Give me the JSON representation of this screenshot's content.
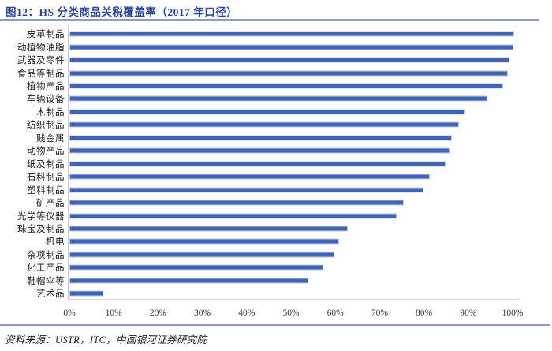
{
  "figure": {
    "title": "图12：HS 分类商品关税覆盖率（2017 年口径）",
    "source": "资料来源：USTR，ITC，中国银河证券研究院"
  },
  "colors": {
    "bar_fill": "#3E64B4",
    "bar_edge": "#BCC9E8",
    "title_text": "#2E4A96",
    "divider_rule": "#8C9CC9",
    "axis_line": "#D9D9D9",
    "tick_text": "#3a3a3a",
    "category_text": "#1c1c1c"
  },
  "chart_data": {
    "type": "bar",
    "orientation": "horizontal",
    "title": "HS 分类商品关税覆盖率（2017 年口径）",
    "categories": [
      "皮革制品",
      "动植物油脂",
      "武器及零件",
      "食品等制品",
      "植物产品",
      "车辆设备",
      "木制品",
      "纺织制品",
      "贱金属",
      "动物产品",
      "纸及制品",
      "石料制品",
      "塑料制品",
      "矿产品",
      "光学等仪器",
      "珠宝及制品",
      "机电",
      "杂项制品",
      "化工产品",
      "鞋帽伞等",
      "艺术品"
    ],
    "values": [
      100,
      99.8,
      99,
      98.5,
      97.5,
      94,
      89,
      87.5,
      86,
      85.5,
      84.5,
      81,
      79.5,
      75,
      73.5,
      62.5,
      60.5,
      59.5,
      57,
      53.5,
      7.3
    ],
    "unit": "%",
    "xlabel": "",
    "ylabel": "",
    "xlim": [
      0,
      100
    ],
    "x_ticks": [
      "0%",
      "10%",
      "20%",
      "30%",
      "40%",
      "50%",
      "60%",
      "70%",
      "80%",
      "90%",
      "100%"
    ],
    "grid": false,
    "legend": "none"
  }
}
